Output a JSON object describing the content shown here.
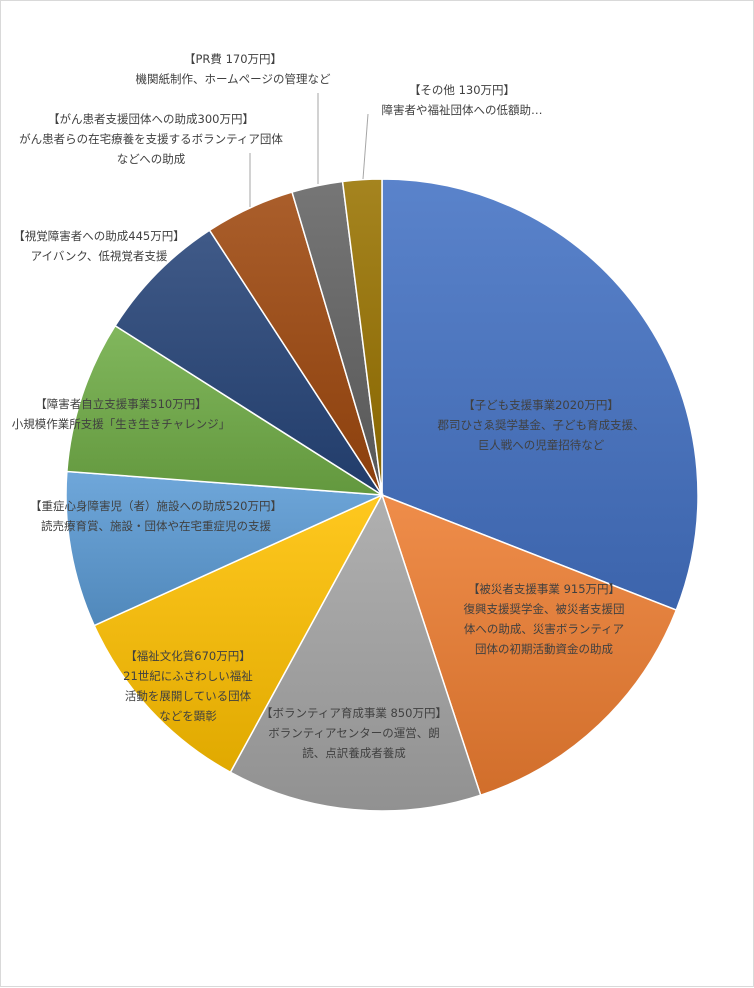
{
  "chart_data": {
    "type": "pie",
    "unit": "万円",
    "legend": "none",
    "slices": [
      {
        "title": "【子ども支援事業2020万円】",
        "value": 2020,
        "color": "#4472C4",
        "desc": [
          "郡司ひさゑ奨学基金、子ども育成支援、",
          "巨人戦への児童招待など"
        ]
      },
      {
        "title": "【被災者支援事業 915万円】",
        "value": 915,
        "color": "#ED7D31",
        "desc": [
          "復興支援奨学金、被災者支援団",
          "体への助成、災害ボランティア",
          "団体の初期活動資金の助成"
        ]
      },
      {
        "title": "【ボランティア育成事業 850万円】",
        "value": 850,
        "color": "#A5A5A5",
        "desc": [
          "ボランティアセンターの運営、朗",
          "読、点訳養成者養成"
        ]
      },
      {
        "title": "【福祉文化賞670万円】",
        "value": 670,
        "color": "#FFC000",
        "desc": [
          "21世紀にふさわしい福祉",
          "活動を展開している団体",
          "などを顕彰"
        ]
      },
      {
        "title": "【重症心身障害児（者）施設への助成520万円】",
        "value": 520,
        "color": "#5B9BD5",
        "desc": [
          "読売療育賞、施設・団体や在宅重症児の支援"
        ]
      },
      {
        "title": "【障害者自立支援事業510万円】",
        "value": 510,
        "color": "#70AD47",
        "desc": [
          "小規模作業所支援「生き生きチャレンジ」"
        ]
      },
      {
        "title": "【視覚障害者への助成445万円】",
        "value": 445,
        "color": "#264478",
        "desc": [
          "アイバンク、低視覚者支援"
        ]
      },
      {
        "title": "【がん患者支援団体への助成300万円】",
        "value": 300,
        "color": "#9E480E",
        "desc": [
          "がん患者らの在宅療養を支援するボランティア団体",
          "などへの助成"
        ]
      },
      {
        "title": "【PR費 170万円】",
        "value": 170,
        "color": "#636363",
        "desc": [
          "機関紙制作、ホームページの管理など"
        ]
      },
      {
        "title": "【その他 130万円】",
        "value": 130,
        "color": "#997300",
        "desc": [
          "障害者や福祉団体への低額助…"
        ]
      }
    ]
  }
}
